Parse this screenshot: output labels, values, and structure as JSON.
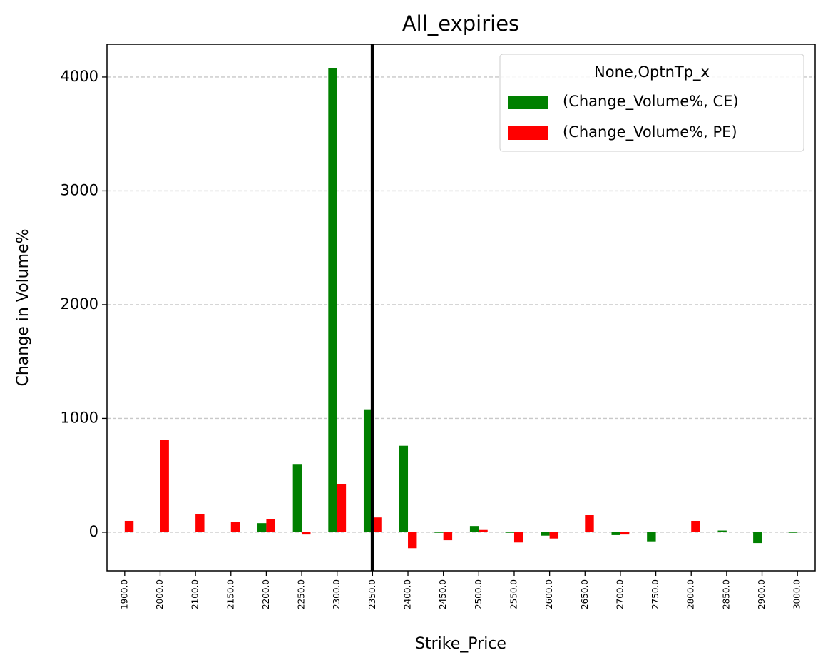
{
  "chart_data": {
    "type": "bar",
    "title": "All_expiries",
    "x_label": "Strike_Price",
    "y_label": "Change in Volume%",
    "categories": [
      "1900.0",
      "2000.0",
      "2100.0",
      "2150.0",
      "2200.0",
      "2250.0",
      "2300.0",
      "2350.0",
      "2400.0",
      "2450.0",
      "2500.0",
      "2550.0",
      "2600.0",
      "2650.0",
      "2700.0",
      "2750.0",
      "2800.0",
      "2850.0",
      "2900.0",
      "3000.0"
    ],
    "series": [
      {
        "name": "(Change_Volume%, CE)",
        "color": "#008000",
        "values": [
          0,
          0,
          0,
          0,
          80,
          600,
          4080,
          1080,
          760,
          -5,
          55,
          -5,
          -30,
          5,
          -25,
          -80,
          0,
          15,
          -95,
          -5
        ]
      },
      {
        "name": "(Change_Volume%, PE)",
        "color": "#ff0000",
        "values": [
          100,
          810,
          160,
          90,
          115,
          -20,
          420,
          130,
          -140,
          -70,
          20,
          -90,
          -55,
          150,
          -20,
          0,
          100,
          0,
          0,
          0
        ]
      }
    ],
    "legend_title": "None,OptnTp_x",
    "legend": "upper right",
    "ylim": [
      -339,
      4288
    ],
    "yticks": [
      0,
      1000,
      2000,
      3000,
      4000
    ],
    "grid": true,
    "vline_at": "2350.0"
  }
}
